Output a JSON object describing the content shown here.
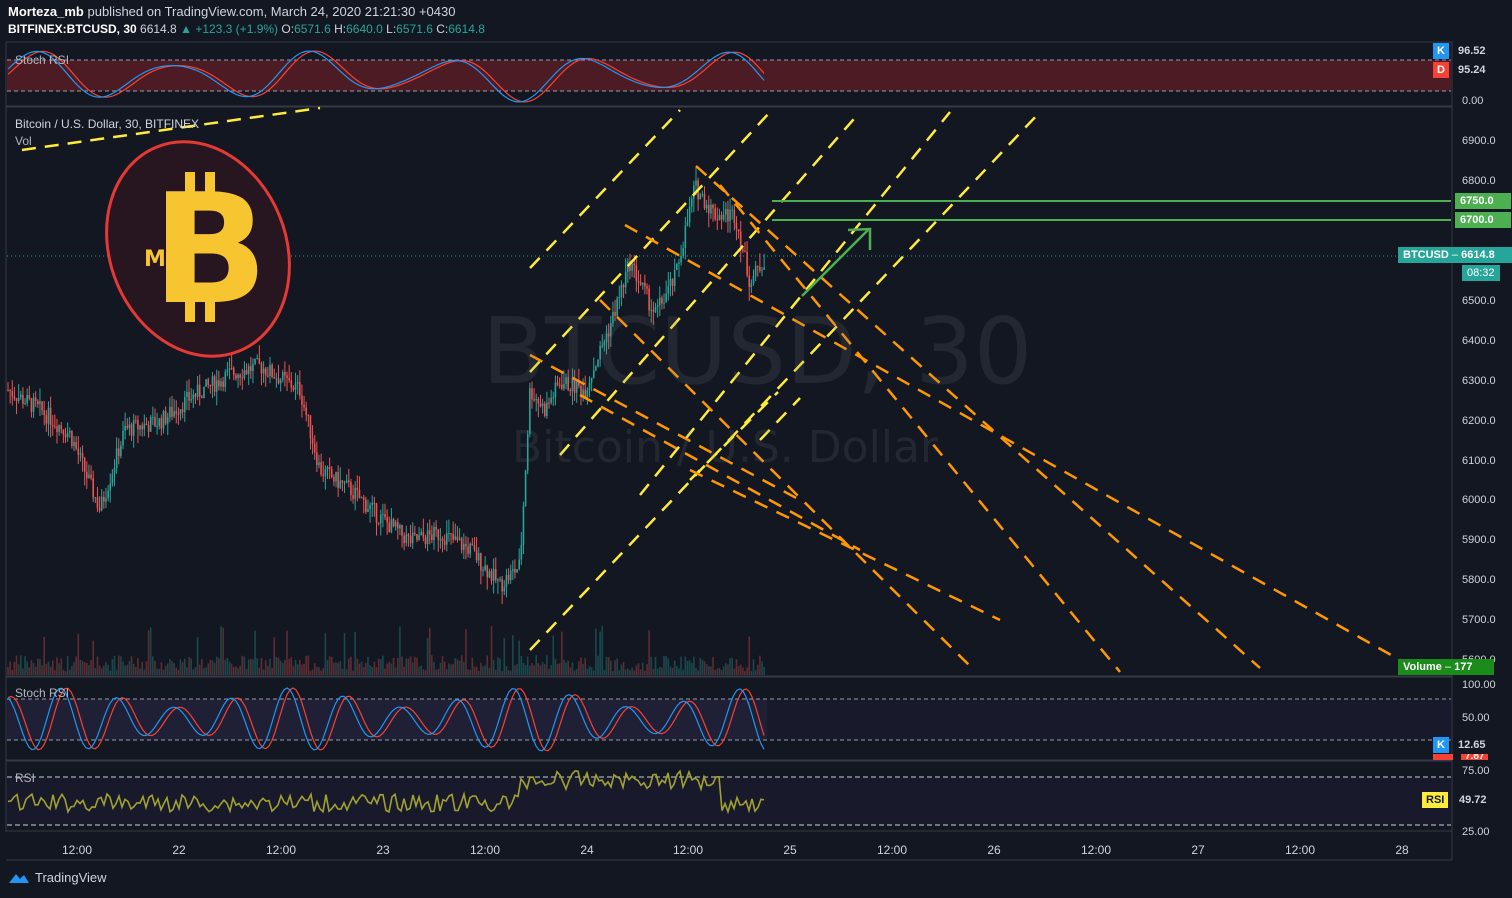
{
  "header": {
    "author": "Morteza_mb",
    "published_text": "published on TradingView.com, March 24, 2020 21:21:30 +0430",
    "symbol": "BITFINEX:BTCUSD, 30",
    "last": "6614.8",
    "change": "+123.3 (+1.9%)",
    "o_label": "O:",
    "o_value": "6571.6",
    "h_label": "H:",
    "h_value": "6640.0",
    "l_label": "L:",
    "l_value": "6571.6",
    "c_label": "C:",
    "c_value": "6614.8"
  },
  "panes": {
    "top_stoch_label": "Stoch RSI",
    "main_title": "Bitcoin / U.S. Dollar, 30, BITFINEX",
    "main_vol": "Vol",
    "stoch_label": "Stoch RSI",
    "rsi_label": "RSI"
  },
  "watermark": {
    "symbol": "BTCUSD, 30",
    "name": "Bitcoin / U.S. Dollar"
  },
  "logo": {
    "letter": "B",
    "small": "M"
  },
  "price_axis": [
    "6900.0",
    "6800.0",
    "6500.0",
    "6400.0",
    "6300.0",
    "6200.0",
    "6100.0",
    "6000.0",
    "5900.0",
    "5800.0",
    "5700.0",
    "5600.0"
  ],
  "top_stoch_axis": [
    "0.00"
  ],
  "stoch_axis": [
    "100.00",
    "50.00"
  ],
  "rsi_axis": [
    "75.00",
    "25.00"
  ],
  "tags": {
    "k_top_label": "K",
    "k_top_value": "96.52",
    "d_top_label": "D",
    "d_top_value": "95.24",
    "level_6750": "6750.0",
    "level_6700": "6700.0",
    "btcusd_label": "BTCUSD",
    "btcusd_value": "6614.8",
    "countdown": "08:32",
    "volume_label": "Volume",
    "volume_value": "177",
    "k_bottom_label": "K",
    "k_bottom_value": "12.65",
    "d_bottom_value": "7.87",
    "rsi_label": "RSI",
    "rsi_value": "49.72"
  },
  "time_axis": [
    "12:00",
    "22",
    "12:00",
    "23",
    "12:00",
    "24",
    "12:00",
    "25",
    "12:00",
    "26",
    "12:00",
    "27",
    "12:00",
    "28"
  ],
  "footer": {
    "brand": "TradingView"
  },
  "colors": {
    "background": "#131722",
    "bull": "#26a69a",
    "bear": "#ef5350",
    "yellow_lines": "#ffeb3b",
    "orange_lines": "#ff9800",
    "green_levels": "#4caf50",
    "k_line": "#2196f3",
    "d_line": "#f44336",
    "rsi_line": "#a1a131"
  }
}
